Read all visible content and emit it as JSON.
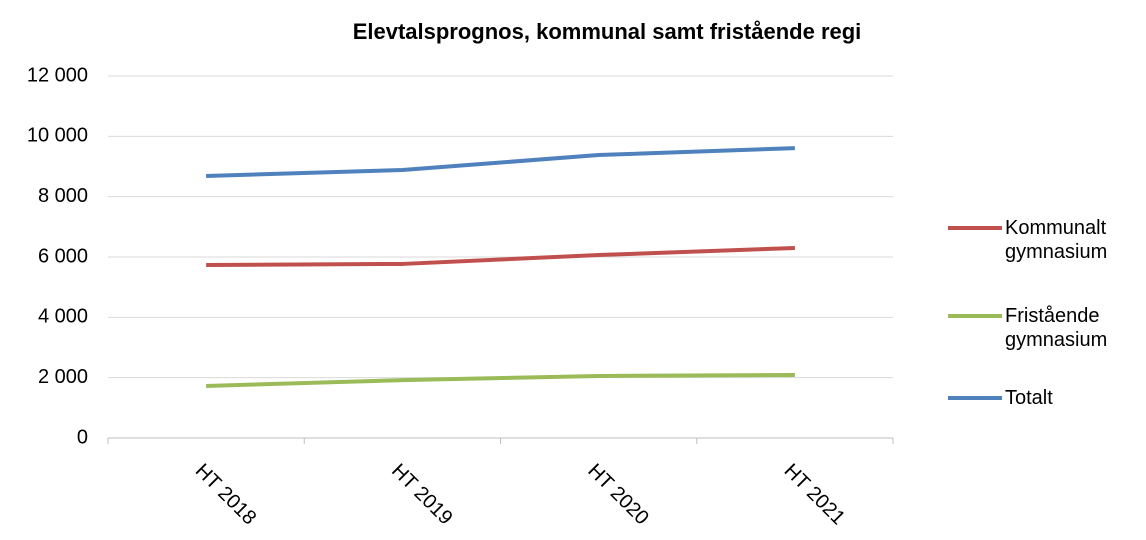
{
  "chart_data": {
    "type": "line",
    "title": "Elevtalsprognos, kommunal samt fristående regi",
    "categories": [
      "HT 2018",
      "HT 2019",
      "HT 2020",
      "HT 2021"
    ],
    "series": [
      {
        "name": "Kommunalt gymnasium",
        "color": "#c0504d",
        "values": [
          5735,
          5770,
          6065,
          6300
        ]
      },
      {
        "name": "Fristående gymnasium",
        "color": "#9bbb59",
        "values": [
          1725,
          1920,
          2055,
          2090
        ]
      },
      {
        "name": "Totalt",
        "color": "#4f81bd",
        "values": [
          8685,
          8885,
          9380,
          9610
        ]
      }
    ],
    "ylim": [
      0,
      12000
    ],
    "yticks": [
      0,
      {
        "value": 2000,
        "label": "2 000"
      },
      {
        "value": 4000,
        "label": "4 000"
      },
      {
        "value": 6000,
        "label": "6 000"
      },
      {
        "value": 8000,
        "label": "8 000"
      },
      {
        "value": 10000,
        "label": "10 000"
      },
      {
        "value": 12000,
        "label": "12 000"
      }
    ],
    "grid": true,
    "legend": "right"
  }
}
